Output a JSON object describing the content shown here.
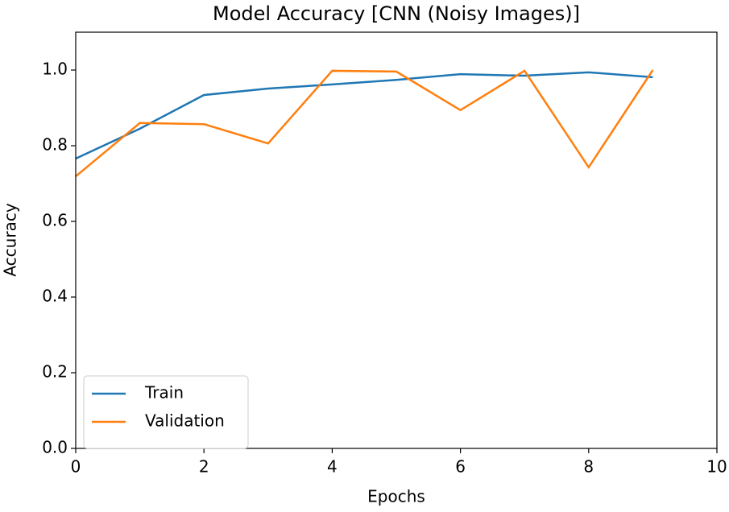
{
  "chart_data": {
    "type": "line",
    "title": "Model Accuracy [CNN (Noisy Images)]",
    "x_label": "Epochs",
    "y_label": "Accuracy",
    "x": [
      0,
      1,
      2,
      3,
      4,
      5,
      6,
      7,
      8,
      9
    ],
    "series": [
      {
        "name": "Train",
        "color": "#1f77b4",
        "values": [
          0.766,
          0.845,
          0.934,
          0.951,
          0.962,
          0.974,
          0.989,
          0.985,
          0.994,
          0.981
        ]
      },
      {
        "name": "Validation",
        "color": "#ff7f0e",
        "values": [
          0.719,
          0.86,
          0.857,
          0.806,
          0.998,
          0.996,
          0.894,
          0.998,
          0.743,
          1.0
        ]
      }
    ],
    "xlim": [
      0,
      10
    ],
    "xticks": [
      0,
      2,
      4,
      6,
      8,
      10
    ],
    "ylim": [
      0,
      1.1
    ],
    "yticks": [
      {
        "value": 0,
        "label": "0.0"
      },
      0.2,
      0.4,
      0.6,
      0.8,
      {
        "value": 1,
        "label": "1.0"
      }
    ],
    "legend": "lower left"
  }
}
